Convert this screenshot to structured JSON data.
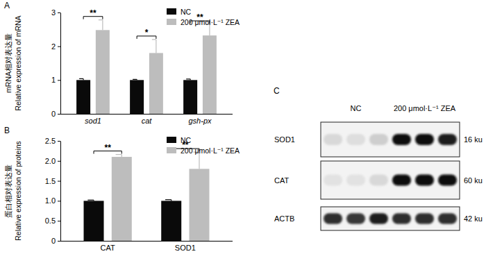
{
  "chart_data": [
    {
      "type": "bar",
      "title": "A",
      "ylabel": [
        "mRNA相对表达量",
        "Relative expression of mRNA"
      ],
      "categories": [
        "sod1",
        "cat",
        "gsh-px"
      ],
      "series": [
        {
          "name": "NC",
          "color": "#0a0a0a",
          "values": [
            1,
            1,
            1
          ],
          "errors": [
            0.04,
            0.02,
            0.03
          ]
        },
        {
          "name": "200 μmol·L⁻¹ ZEA",
          "color": "#bdbdbd",
          "values": [
            2.48,
            1.8,
            2.32
          ],
          "errors": [
            0.3,
            0.4,
            0.33
          ]
        }
      ],
      "annotations": [
        "**",
        "*",
        "**"
      ],
      "ylim": [
        0,
        3
      ],
      "yticks": [
        0,
        1,
        2,
        3
      ],
      "legend": "upper right"
    },
    {
      "type": "bar",
      "title": "B",
      "ylabel": [
        "蛋白相对表达量",
        "Relative expression of proteins"
      ],
      "categories": [
        "CAT",
        "SOD1"
      ],
      "series": [
        {
          "name": "NC",
          "color": "#0a0a0a",
          "values": [
            1,
            1
          ],
          "errors": [
            0.02,
            0.03
          ]
        },
        {
          "name": "200 μmol·L⁻¹ ZEA",
          "color": "#bdbdbd",
          "values": [
            2.1,
            1.8
          ],
          "errors": [
            0.06,
            0.42
          ]
        }
      ],
      "annotations": [
        "**",
        "**"
      ],
      "ylim": [
        0,
        2.5
      ],
      "yticks": [
        0,
        0.5,
        {
          "value": 1,
          "label": "1.0"
        },
        {
          "value": 1.5,
          "label": "1.5"
        },
        {
          "value": 2,
          "label": "2.0"
        },
        {
          "value": 2.5,
          "label": "2.5"
        }
      ],
      "legend": "upper right"
    }
  ],
  "blot": {
    "label": "C",
    "groups": [
      "NC",
      "200 μmol·L⁻¹ ZEA"
    ],
    "rows": [
      {
        "name": "SOD1",
        "size": "16 ku",
        "intensity": [
          0.25,
          0.22,
          0.3,
          0.95,
          0.95,
          0.9
        ]
      },
      {
        "name": "CAT",
        "size": "60 ku",
        "intensity": [
          0.2,
          0.2,
          0.25,
          0.97,
          0.97,
          0.97
        ]
      },
      {
        "name": "ACTB",
        "size": "42 ku",
        "intensity": [
          0.85,
          0.82,
          0.9,
          0.85,
          0.85,
          0.85
        ]
      }
    ]
  }
}
